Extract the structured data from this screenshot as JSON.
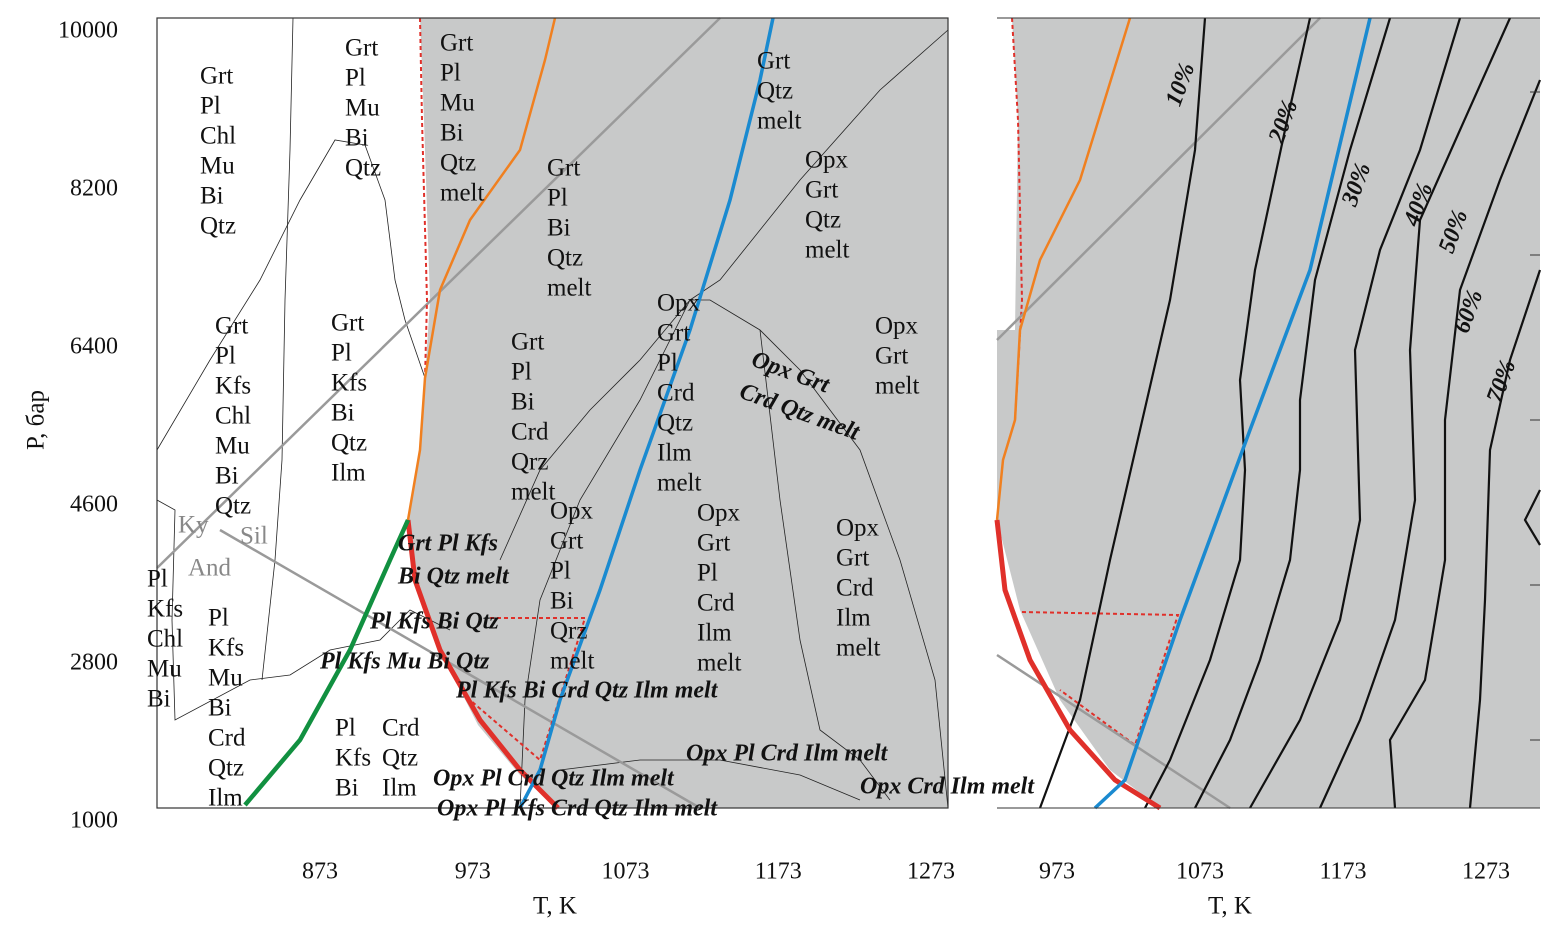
{
  "left_panel": {
    "y_axis_label": "P, бар",
    "x_axis_label": "T, K",
    "yticks": [
      10000,
      8200,
      6400,
      4600,
      2800,
      1000
    ],
    "xticks": [
      873,
      973,
      1073,
      1173,
      1273
    ],
    "polymorphs": [
      "Ky",
      "Sil",
      "And"
    ],
    "fields": [
      {
        "lines": [
          "Grt",
          "Pl",
          "Chl",
          "Mu",
          "Bi",
          "Qtz"
        ]
      },
      {
        "lines": [
          "Grt",
          "Pl",
          "Mu",
          "Bi",
          "Qtz"
        ]
      },
      {
        "lines": [
          "Grt",
          "Pl",
          "Mu",
          "Bi",
          "Qtz",
          "melt"
        ]
      },
      {
        "lines": [
          "Grt",
          "Qtz",
          "melt"
        ]
      },
      {
        "lines": [
          "Grt",
          "Pl",
          "Bi",
          "Qtz",
          "melt"
        ]
      },
      {
        "lines": [
          "Opx",
          "Grt",
          "Qtz",
          "melt"
        ]
      },
      {
        "lines": [
          "Grt",
          "Pl",
          "Kfs",
          "Chl",
          "Mu",
          "Bi",
          "Qtz"
        ]
      },
      {
        "lines": [
          "Grt",
          "Pl",
          "Kfs",
          "Bi",
          "Qtz",
          "Ilm"
        ]
      },
      {
        "lines": [
          "Opx",
          "Grt",
          "Pl",
          "Crd",
          "Qtz",
          "Ilm",
          "melt"
        ]
      },
      {
        "lines": [
          "Grt",
          "Pl",
          "Bi",
          "Crd",
          "Qrz",
          "melt"
        ]
      },
      {
        "lines": [
          "Opx",
          "Grt",
          "melt"
        ]
      },
      {
        "lines": [
          "Pl",
          "Kfs",
          "Chl",
          "Mu",
          "Bi"
        ]
      },
      {
        "lines": [
          "Pl",
          "Kfs",
          "Mu",
          "Bi",
          "Crd",
          "Qtz",
          "Ilm"
        ]
      },
      {
        "lines": [
          "Opx",
          "Grt",
          "Pl",
          "Bi",
          "Qrz",
          "melt"
        ]
      },
      {
        "lines": [
          "Opx",
          "Grt",
          "Pl",
          "Crd",
          "Ilm",
          "melt"
        ]
      },
      {
        "lines": [
          "Opx",
          "Grt",
          "Crd",
          "Ilm",
          "melt"
        ]
      },
      {
        "lines": [
          "Pl",
          "Kfs",
          "Bi"
        ]
      },
      {
        "lines": [
          "Crd",
          "Qtz",
          "Ilm"
        ]
      }
    ],
    "italic_fields": [
      "Grt Pl Kfs",
      "Bi Qtz melt",
      "Pl Kfs Bi Qtz",
      "Pl Kfs Mu Bi Qtz",
      "Pl Kfs Bi Crd Qtz Ilm melt",
      "Opx Pl Crd Ilm melt",
      "Opx Pl Crd Qtz Ilm melt",
      "Opx Crd Ilm melt",
      "Opx Pl Kfs Crd Qtz Ilm melt",
      "Opx Grt",
      "Crd Qtz melt"
    ]
  },
  "right_panel": {
    "x_axis_label": "T, K",
    "xticks": [
      973,
      1073,
      1173,
      1273
    ],
    "isopleths": [
      "10%",
      "20%",
      "30%",
      "40%",
      "50%",
      "60%",
      "70%"
    ]
  }
}
